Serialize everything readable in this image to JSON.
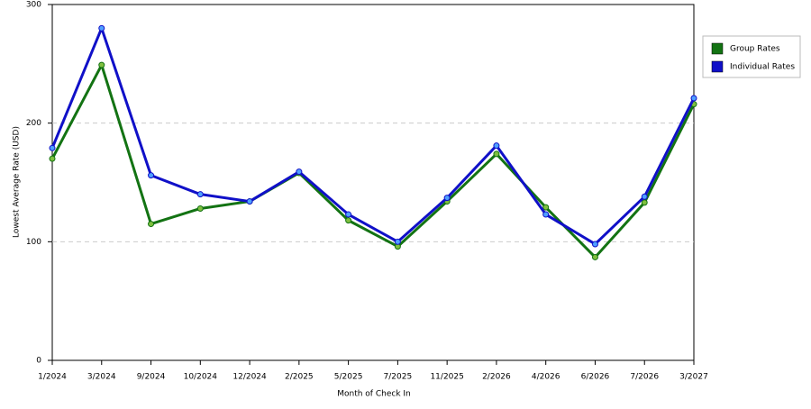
{
  "chart_data": {
    "type": "line",
    "x_label": "Month of Check In",
    "y_label": "Lowest Average Rate (USD)",
    "categories": [
      "1/2024",
      "3/2024",
      "9/2024",
      "10/2024",
      "12/2024",
      "2/2025",
      "5/2025",
      "7/2025",
      "11/2025",
      "2/2026",
      "4/2026",
      "6/2026",
      "7/2026",
      "3/2027"
    ],
    "series": [
      {
        "name": "Group Rates",
        "color": "#137313",
        "values": [
          170,
          249,
          115,
          128,
          134,
          158,
          118,
          96,
          134,
          174,
          129,
          87,
          133,
          216
        ]
      },
      {
        "name": "Individual Rates",
        "color": "#1010c8",
        "values": [
          179,
          280,
          156,
          140,
          134,
          159,
          123,
          100,
          137,
          181,
          123,
          98,
          138,
          221
        ]
      }
    ],
    "ylim": [
      0,
      300
    ],
    "yticks": [
      0,
      100,
      200,
      300
    ],
    "grid": true,
    "legend": "right"
  }
}
